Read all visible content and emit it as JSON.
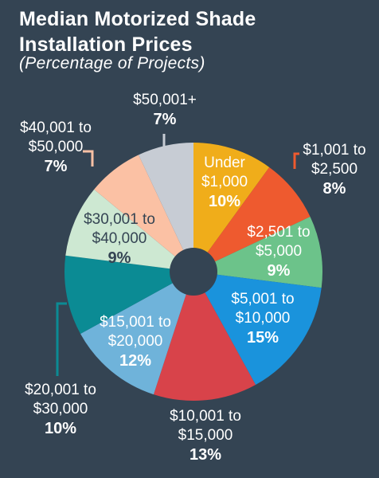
{
  "title_line1": "Median Motorized Shade",
  "title_line2": "Installation Prices",
  "subtitle": "(Percentage of Projects)",
  "chart_data": {
    "type": "pie",
    "title": "Median Motorized Shade Installation Prices",
    "subtitle": "(Percentage of Projects)",
    "categories": [
      "Under $1,000",
      "$1,001 to $2,500",
      "$2,501 to $5,000",
      "$5,001 to $10,000",
      "$10,001 to $15,000",
      "$15,001 to $20,000",
      "$20,001 to $30,000",
      "$30,001 to $40,000",
      "$40,001 to $50,000",
      "$50,001+"
    ],
    "values": [
      10,
      8,
      9,
      15,
      13,
      12,
      10,
      9,
      7,
      7
    ],
    "unit": "%",
    "colors": [
      "#f0ad1a",
      "#ee5a2f",
      "#6cc38a",
      "#1a93dc",
      "#d8434a",
      "#6fb3da",
      "#0b8b94",
      "#cde8d2",
      "#fbc1a4",
      "#c7ccd4"
    ],
    "slices": [
      {
        "label_lines": [
          "Under",
          "$1,000"
        ],
        "pct": "10%"
      },
      {
        "label_lines": [
          "$1,001 to",
          "$2,500"
        ],
        "pct": "8%"
      },
      {
        "label_lines": [
          "$2,501 to",
          "$5,000"
        ],
        "pct": "9%"
      },
      {
        "label_lines": [
          "$5,001 to",
          "$10,000"
        ],
        "pct": "15%"
      },
      {
        "label_lines": [
          "$10,001 to",
          "$15,000"
        ],
        "pct": "13%"
      },
      {
        "label_lines": [
          "$15,001 to",
          "$20,000"
        ],
        "pct": "12%"
      },
      {
        "label_lines": [
          "$20,001 to",
          "$30,000"
        ],
        "pct": "10%"
      },
      {
        "label_lines": [
          "$30,001 to",
          "$40,000"
        ],
        "pct": "9%"
      },
      {
        "label_lines": [
          "$40,001 to",
          "$50,000"
        ],
        "pct": "7%"
      },
      {
        "label_lines": [
          "$50,001+"
        ],
        "pct": "7%"
      }
    ]
  }
}
